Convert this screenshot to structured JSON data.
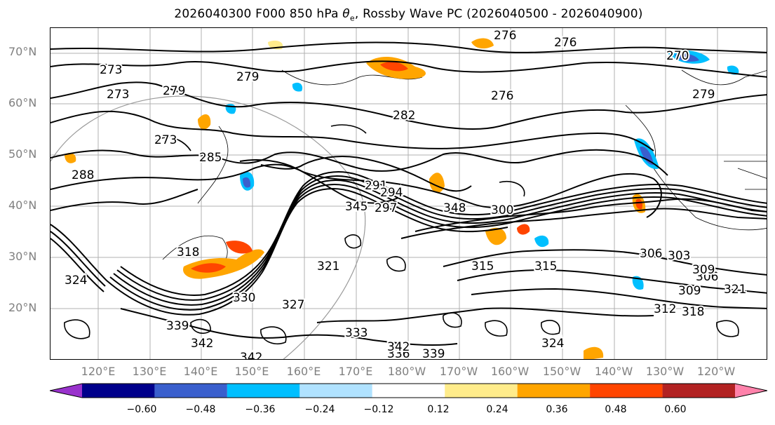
{
  "title": {
    "prefix": "2026040300 F000 850 hPa ",
    "theta": "θ",
    "theta_sub": "e",
    "suffix": ", Rossby Wave PC (2026040500 - 2026040900)"
  },
  "lat_labels": [
    "70°N",
    "60°N",
    "50°N",
    "40°N",
    "30°N",
    "20°N"
  ],
  "lon_labels": [
    "120°E",
    "130°E",
    "140°E",
    "150°E",
    "160°E",
    "170°E",
    "180°W",
    "170°W",
    "160°W",
    "150°W",
    "140°W",
    "130°W",
    "120°W"
  ],
  "colorbar": {
    "colors": [
      "#9932cc",
      "#00008b",
      "#3a5fcd",
      "#00bfff",
      "#b0e2ff",
      "#ffffff",
      "#ffec8b",
      "#ffa500",
      "#ff4500",
      "#b22222",
      "#ff82ab"
    ],
    "ticks": [
      "−0.60",
      "−0.48",
      "−0.36",
      "−0.24",
      "−0.12",
      "0.12",
      "0.24",
      "0.36",
      "0.48",
      "0.60"
    ]
  },
  "contour_labels": [
    "273",
    "276",
    "276",
    "273",
    "279",
    "279",
    "270",
    "279",
    "276",
    "282",
    "273",
    "285",
    "288",
    "291",
    "294",
    "297",
    "300",
    "303",
    "306",
    "309",
    "312",
    "315",
    "318",
    "321",
    "324",
    "327",
    "330",
    "333",
    "336",
    "339",
    "342",
    "345",
    "348",
    "339",
    "342",
    "318",
    "321",
    "306",
    "309",
    "315",
    "324",
    "342"
  ]
}
